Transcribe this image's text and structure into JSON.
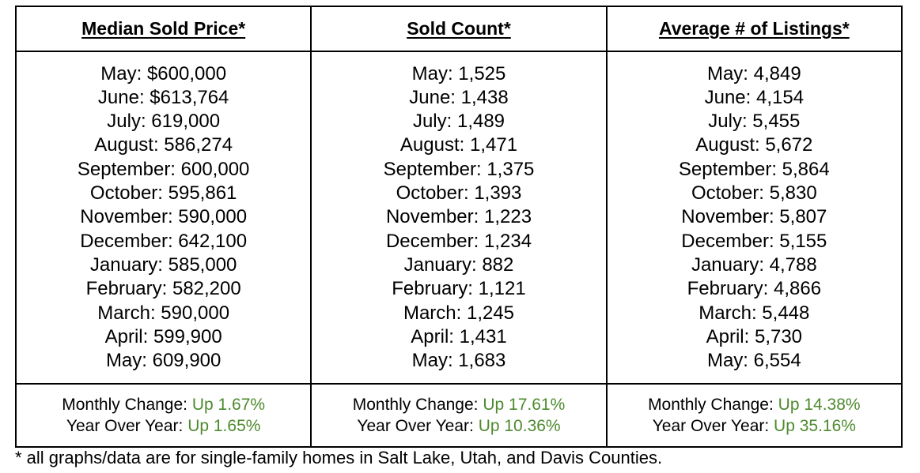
{
  "columns": [
    {
      "header": "Median Sold Price*",
      "rows": [
        "May: $600,000",
        "June: $613,764",
        "July: 619,000",
        "August: 586,274",
        "September: 600,000",
        "October: 595,861",
        "November: 590,000",
        "December: 642,100",
        "January: 585,000",
        "February: 582,200",
        "March: 590,000",
        "April: 599,900",
        "May: 609,900"
      ],
      "monthly_change_label": "Monthly Change: ",
      "monthly_change_value": "Up 1.67%",
      "yoy_label": "Year Over Year: ",
      "yoy_value": "Up 1.65%"
    },
    {
      "header": "Sold Count*",
      "rows": [
        "May: 1,525",
        "June: 1,438",
        "July: 1,489",
        "August: 1,471",
        "September: 1,375",
        "October: 1,393",
        "November: 1,223",
        "December: 1,234",
        "January: 882",
        "February: 1,121",
        "March: 1,245",
        "April: 1,431",
        "May: 1,683"
      ],
      "monthly_change_label": "Monthly Change: ",
      "monthly_change_value": "Up 17.61%",
      "yoy_label": "Year Over Year: ",
      "yoy_value": "Up 10.36%"
    },
    {
      "header": "Average # of Listings*",
      "rows": [
        "May: 4,849",
        "June: 4,154",
        "July: 5,455",
        "August: 5,672",
        "September: 5,864",
        "October: 5,830",
        "November: 5,807",
        "December: 5,155",
        "January: 4,788",
        "February: 4,866",
        "March: 5,448",
        "April: 5,730",
        "May: 6,554"
      ],
      "monthly_change_label": "Monthly Change: ",
      "monthly_change_value": "Up 14.38%",
      "yoy_label": "Year Over Year: ",
      "yoy_value": "Up 35.16%"
    }
  ],
  "footnote": "* all graphs/data are for single-family homes in Salt Lake, Utah, and Davis Counties.",
  "colors": {
    "positive_change": "#4e8a2e",
    "border": "#000000"
  }
}
